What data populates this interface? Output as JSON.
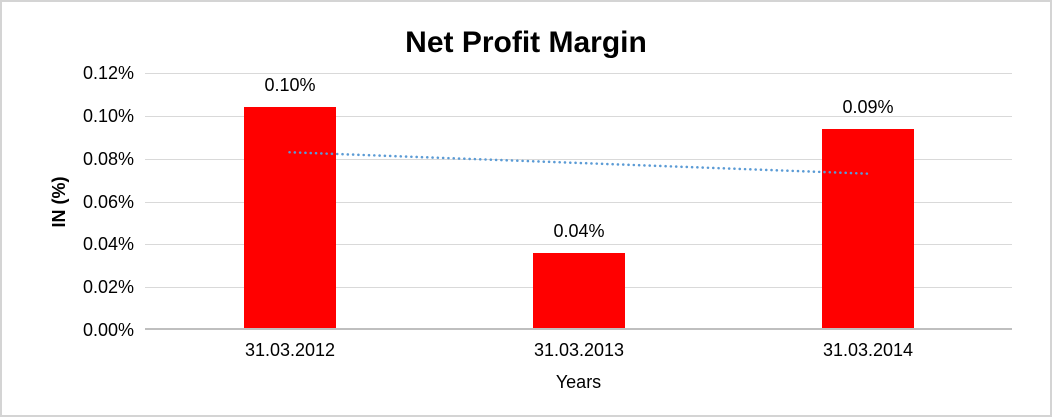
{
  "chart": {
    "title": "Net Profit Margin",
    "y_axis_title": "IN (%)",
    "x_axis_title": "Years",
    "colors": {
      "bar": "#ff0000",
      "trendline": "#5b9bd5",
      "gridline": "#d9d9d9",
      "axis_line": "#bfbfbf",
      "text": "#000000",
      "border": "#d4d4d4",
      "background": "#ffffff"
    }
  },
  "chart_data": {
    "type": "bar",
    "title": "Net Profit Margin",
    "xlabel": "Years",
    "ylabel": "IN (%)",
    "categories": [
      "31.03.2012",
      "31.03.2013",
      "31.03.2014"
    ],
    "values": [
      0.104,
      0.036,
      0.094
    ],
    "data_labels": [
      "0.10%",
      "0.04%",
      "0.09%"
    ],
    "ylim": [
      0,
      0.12
    ],
    "ytick_step": 0.02,
    "ytick_labels": [
      "0.00%",
      "0.02%",
      "0.04%",
      "0.06%",
      "0.08%",
      "0.10%",
      "0.12%"
    ],
    "grid": true,
    "legend": "none",
    "bar_color": "#ff0000",
    "trendline": {
      "style": "dotted",
      "color": "#5b9bd5",
      "start_value": 0.083,
      "end_value": 0.073
    }
  }
}
